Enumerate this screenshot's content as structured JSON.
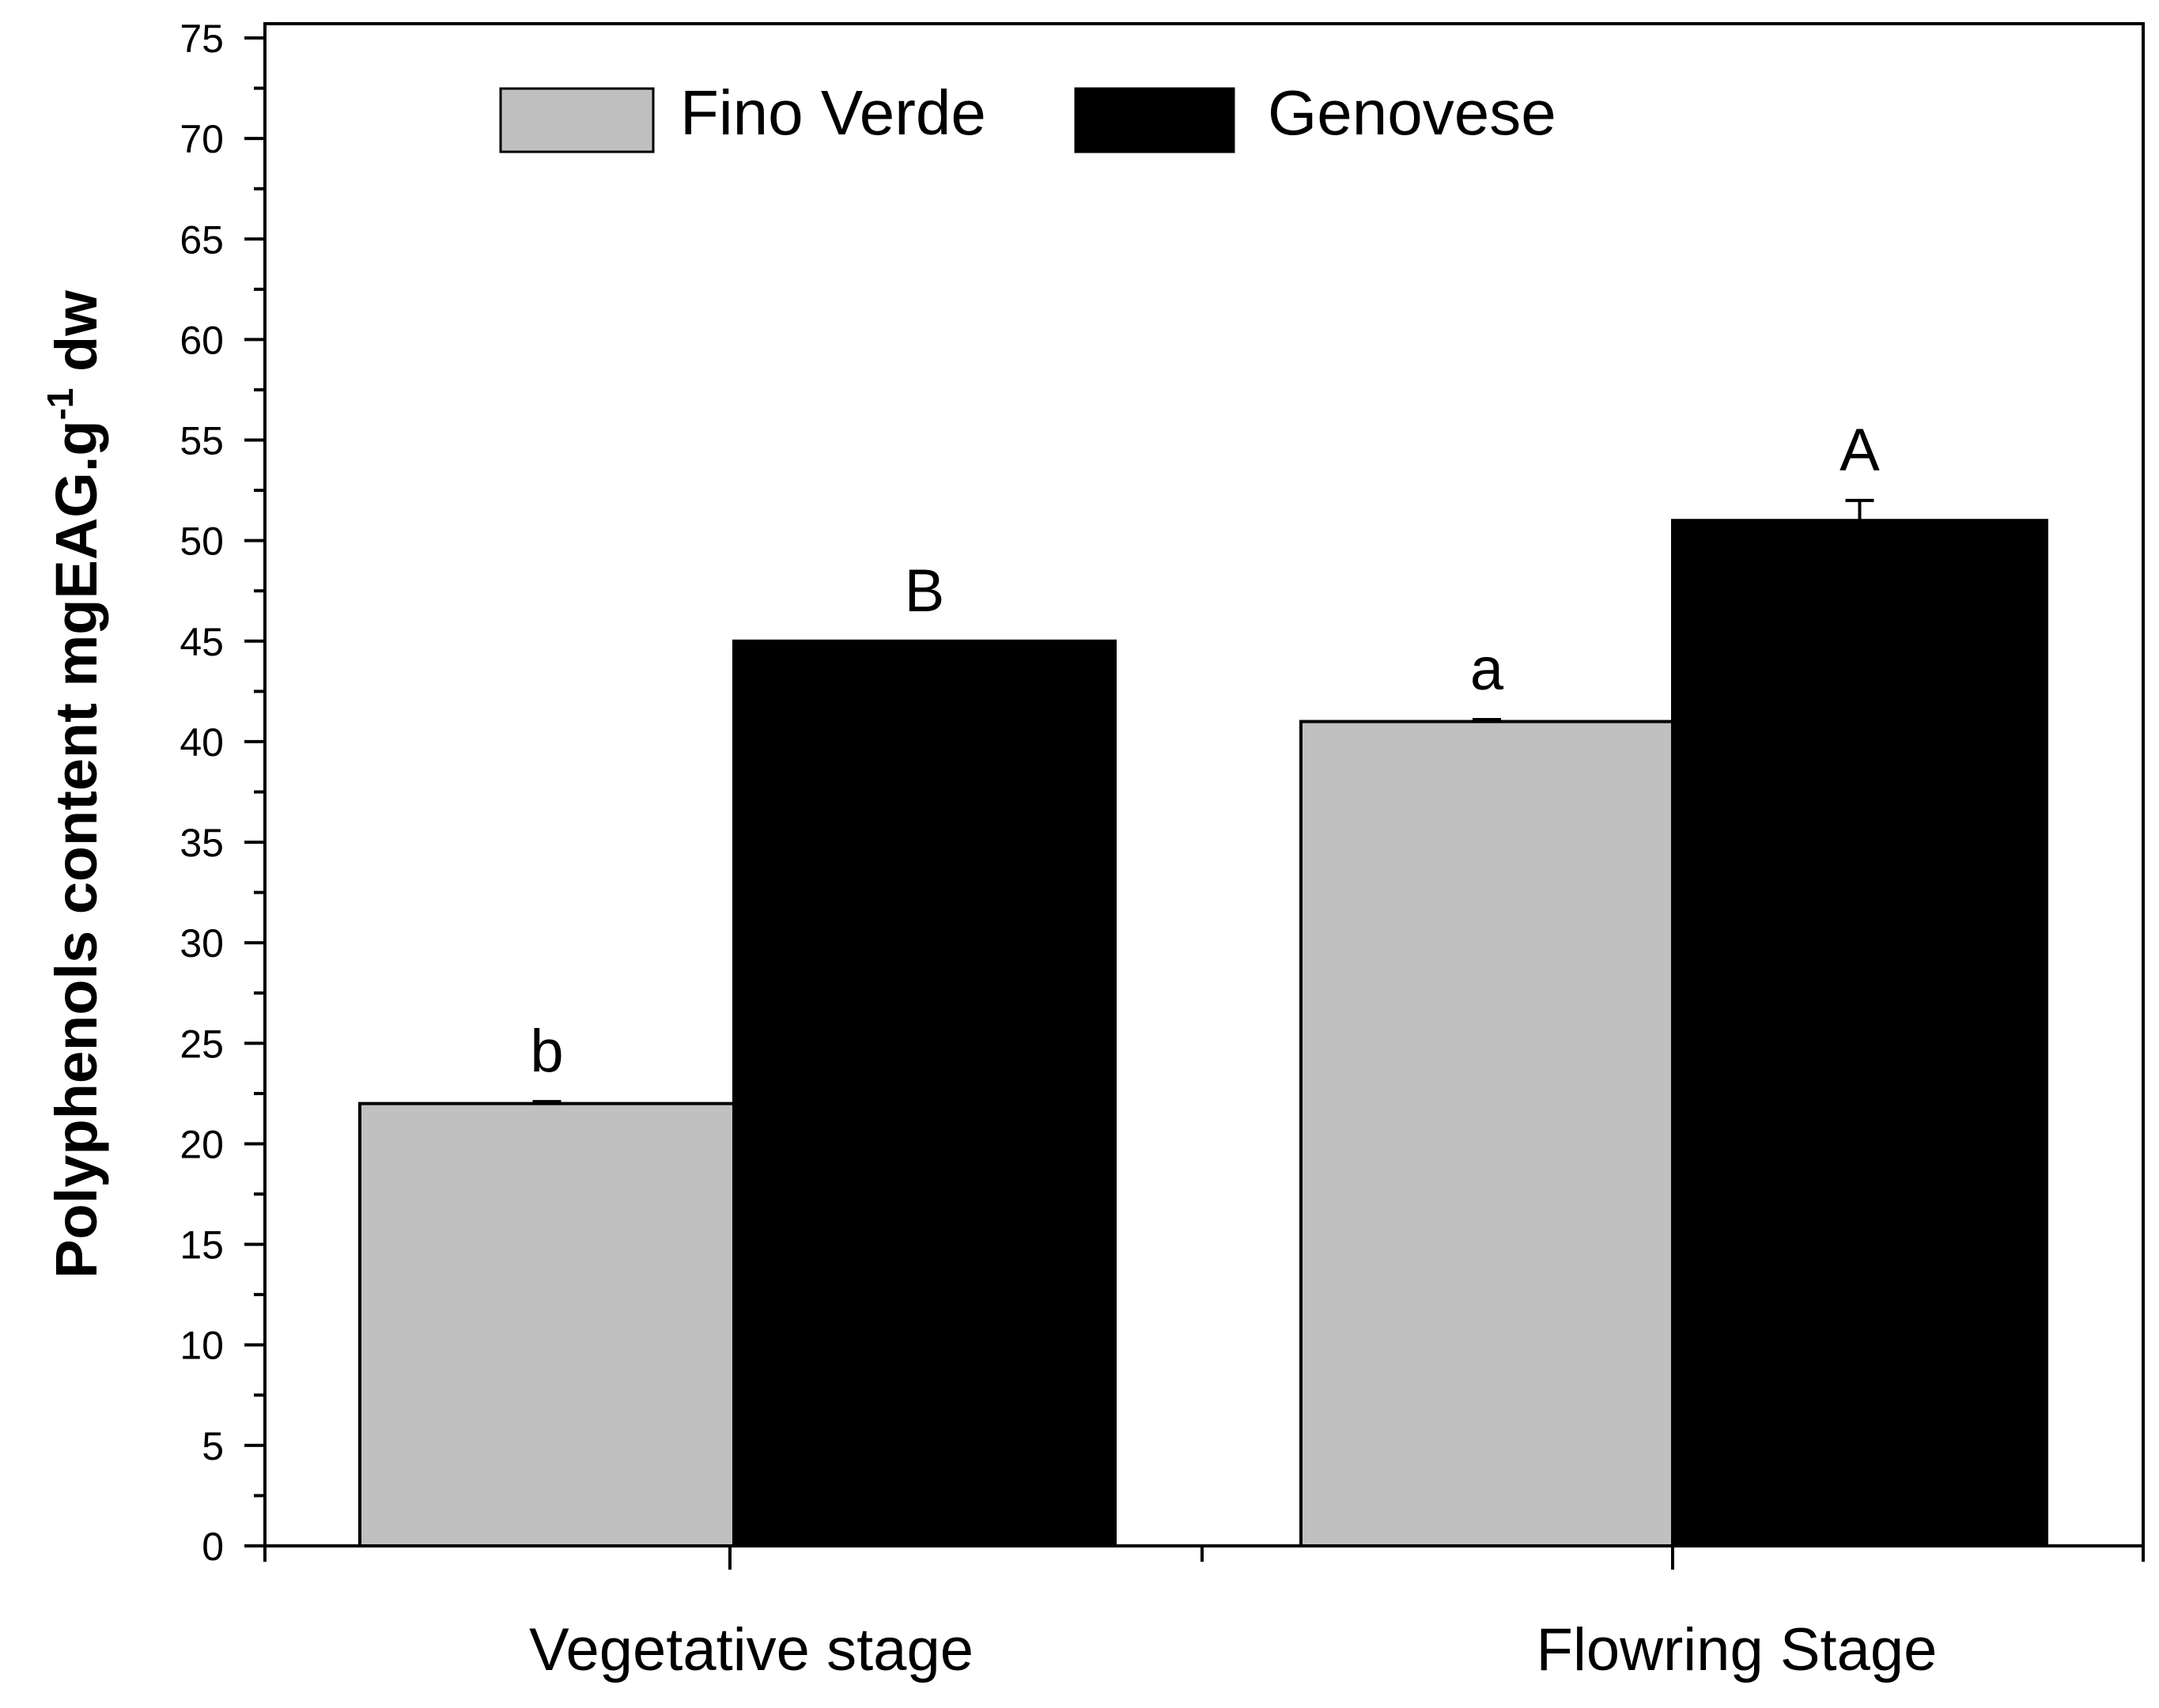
{
  "chart_data": {
    "type": "bar",
    "ylabel_main": "Polyphenols content mgEAG.g",
    "ylabel_sup": "-1",
    "ylabel_tail": " dw",
    "xlabel": "",
    "ylim": [
      0,
      75
    ],
    "ytick_step": 5,
    "yminor_step": 2.5,
    "yticks": [
      "0",
      "5",
      "10",
      "15",
      "20",
      "25",
      "30",
      "35",
      "40",
      "45",
      "50",
      "55",
      "60",
      "65",
      "70",
      "75"
    ],
    "categories": [
      "Vegetative stage",
      "Flowring Stage"
    ],
    "series": [
      {
        "name": "Fino Verde",
        "color": "#c0c0c0",
        "values": [
          22,
          41
        ],
        "errors": [
          0.1,
          0.1
        ],
        "letters": [
          "b",
          "a"
        ]
      },
      {
        "name": "Genovese",
        "color": "#000000",
        "values": [
          45,
          51
        ],
        "errors": [
          0,
          1.0
        ],
        "letters": [
          "B",
          "A"
        ]
      }
    ],
    "legend_position": "top-center",
    "grid": false
  }
}
